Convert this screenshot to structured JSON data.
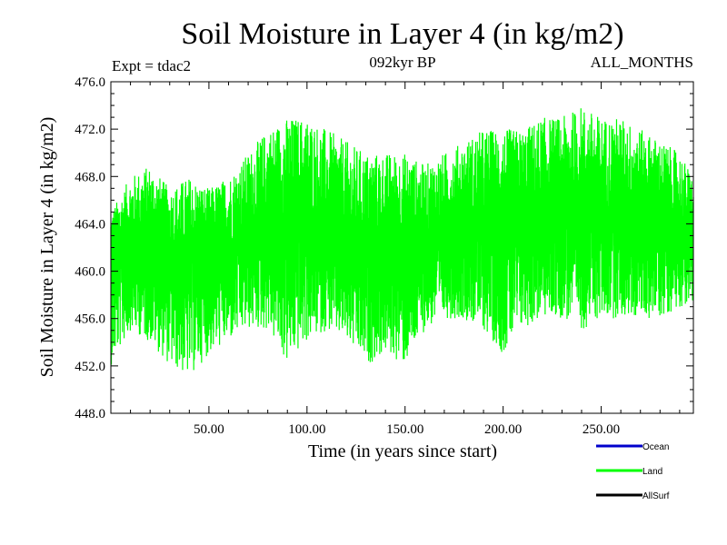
{
  "chart_data": {
    "type": "line",
    "title": "Soil Moisture in Layer 4 (in kg/m2)",
    "subtitle": "092kyr BP",
    "left_label": "Expt = tdac2",
    "right_label": "ALL_MONTHS",
    "xlabel": "Time (in years since start)",
    "ylabel": "Soil Moisture in Layer 4 (in kg/m2)",
    "xlim": [
      0,
      297
    ],
    "ylim": [
      448,
      476
    ],
    "x_ticks": [
      50,
      100,
      150,
      200,
      250
    ],
    "x_tick_labels": [
      "50.00",
      "100.00",
      "150.00",
      "200.00",
      "250.00"
    ],
    "y_ticks": [
      448,
      452,
      456,
      460,
      464,
      468,
      472,
      476
    ],
    "y_tick_labels": [
      "448.0",
      "452.0",
      "456.0",
      "460.0",
      "464.0",
      "468.0",
      "472.0",
      "476.0"
    ],
    "series": [
      {
        "name": "Ocean",
        "color": "#0000cc",
        "values": []
      },
      {
        "name": "Land",
        "color": "#00ff00",
        "x": [
          0,
          10,
          20,
          30,
          40,
          50,
          60,
          70,
          80,
          90,
          100,
          110,
          120,
          130,
          140,
          150,
          160,
          170,
          180,
          190,
          200,
          210,
          220,
          230,
          240,
          250,
          260,
          270,
          280,
          290,
          297
        ],
        "upper": [
          465,
          468,
          469,
          467,
          468,
          467,
          468,
          470,
          472,
          473,
          473,
          472,
          471,
          470,
          470,
          470,
          469,
          470,
          471,
          472,
          472,
          472,
          473,
          473,
          474,
          473,
          473,
          472,
          471,
          470,
          468
        ],
        "lower": [
          452,
          455,
          454,
          452,
          451,
          453,
          454,
          455,
          455,
          452,
          454,
          455,
          454,
          452,
          453,
          452,
          455,
          456,
          456,
          455,
          453,
          455,
          456,
          456,
          455,
          456,
          456,
          456,
          456,
          457,
          457
        ],
        "mean": [
          461,
          462,
          462,
          461,
          461,
          461,
          462,
          463,
          464,
          464,
          464,
          463,
          462,
          462,
          462,
          462,
          462,
          463,
          463,
          464,
          464,
          464,
          465,
          465,
          465,
          465,
          465,
          465,
          465,
          464,
          463
        ]
      },
      {
        "name": "AllSurf",
        "color": "#000000",
        "values": []
      }
    ],
    "legend_position": "bottom-right"
  }
}
